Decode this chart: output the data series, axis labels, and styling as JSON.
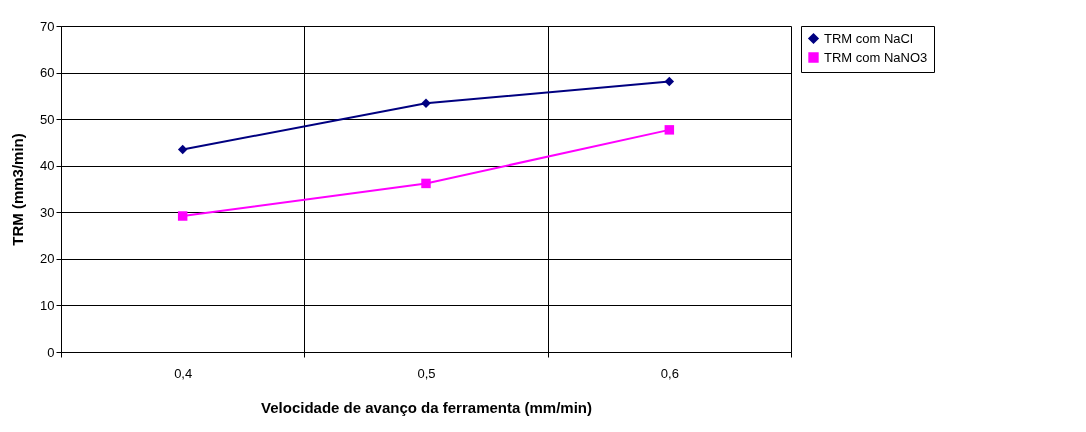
{
  "chart_data": {
    "type": "line",
    "xlabel": "Velocidade de avanço da ferramenta (mm/min)",
    "ylabel": "TRM (mm3/min)",
    "categories": [
      "0,4",
      "0,5",
      "0,6"
    ],
    "series": [
      {
        "name": "TRM com NaCl",
        "color": "#000080",
        "marker": "diamond",
        "values": [
          43.5,
          53.4,
          58.1
        ]
      },
      {
        "name": "TRM com NaNO3",
        "color": "#ff00ff",
        "marker": "square",
        "values": [
          29.2,
          36.2,
          47.7
        ]
      }
    ],
    "ylim": [
      0,
      70
    ],
    "yticks": [
      0,
      10,
      20,
      30,
      40,
      50,
      60,
      70
    ],
    "grid": true,
    "legend": "right"
  }
}
